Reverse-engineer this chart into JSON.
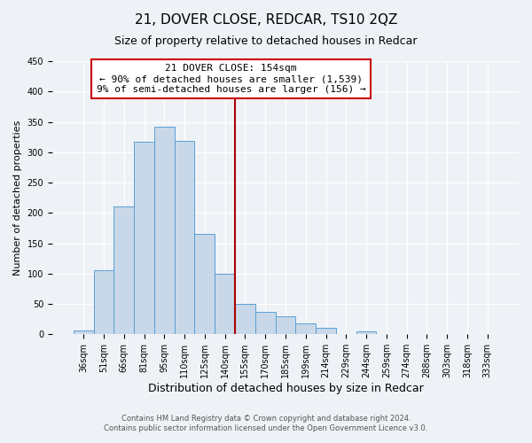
{
  "title": "21, DOVER CLOSE, REDCAR, TS10 2QZ",
  "subtitle": "Size of property relative to detached houses in Redcar",
  "xlabel": "Distribution of detached houses by size in Redcar",
  "ylabel": "Number of detached properties",
  "categories": [
    "36sqm",
    "51sqm",
    "66sqm",
    "81sqm",
    "95sqm",
    "110sqm",
    "125sqm",
    "140sqm",
    "155sqm",
    "170sqm",
    "185sqm",
    "199sqm",
    "214sqm",
    "229sqm",
    "244sqm",
    "259sqm",
    "274sqm",
    "288sqm",
    "303sqm",
    "318sqm",
    "333sqm"
  ],
  "values": [
    7,
    106,
    210,
    317,
    342,
    318,
    165,
    100,
    50,
    37,
    29,
    18,
    10,
    0,
    5,
    0,
    0,
    0,
    0,
    0,
    0
  ],
  "bar_color": "#c8d8e8",
  "bar_edge_color": "#5a9fd4",
  "highlight_line_index": 8,
  "highlight_line_color": "#aa0000",
  "annotation_title": "21 DOVER CLOSE: 154sqm",
  "annotation_line1": "← 90% of detached houses are smaller (1,539)",
  "annotation_line2": "9% of semi-detached houses are larger (156) →",
  "annotation_box_color": "#ffffff",
  "annotation_box_edge_color": "#cc0000",
  "ylim": [
    0,
    450
  ],
  "yticks": [
    0,
    50,
    100,
    150,
    200,
    250,
    300,
    350,
    400,
    450
  ],
  "footnote1": "Contains HM Land Registry data © Crown copyright and database right 2024.",
  "footnote2": "Contains public sector information licensed under the Open Government Licence v3.0.",
  "background_color": "#eef2f7",
  "plot_bg_color": "#eef2f7",
  "grid_color": "#ffffff",
  "title_fontsize": 11,
  "subtitle_fontsize": 9,
  "xlabel_fontsize": 9,
  "ylabel_fontsize": 8,
  "annotation_fontsize": 8,
  "tick_fontsize": 7
}
